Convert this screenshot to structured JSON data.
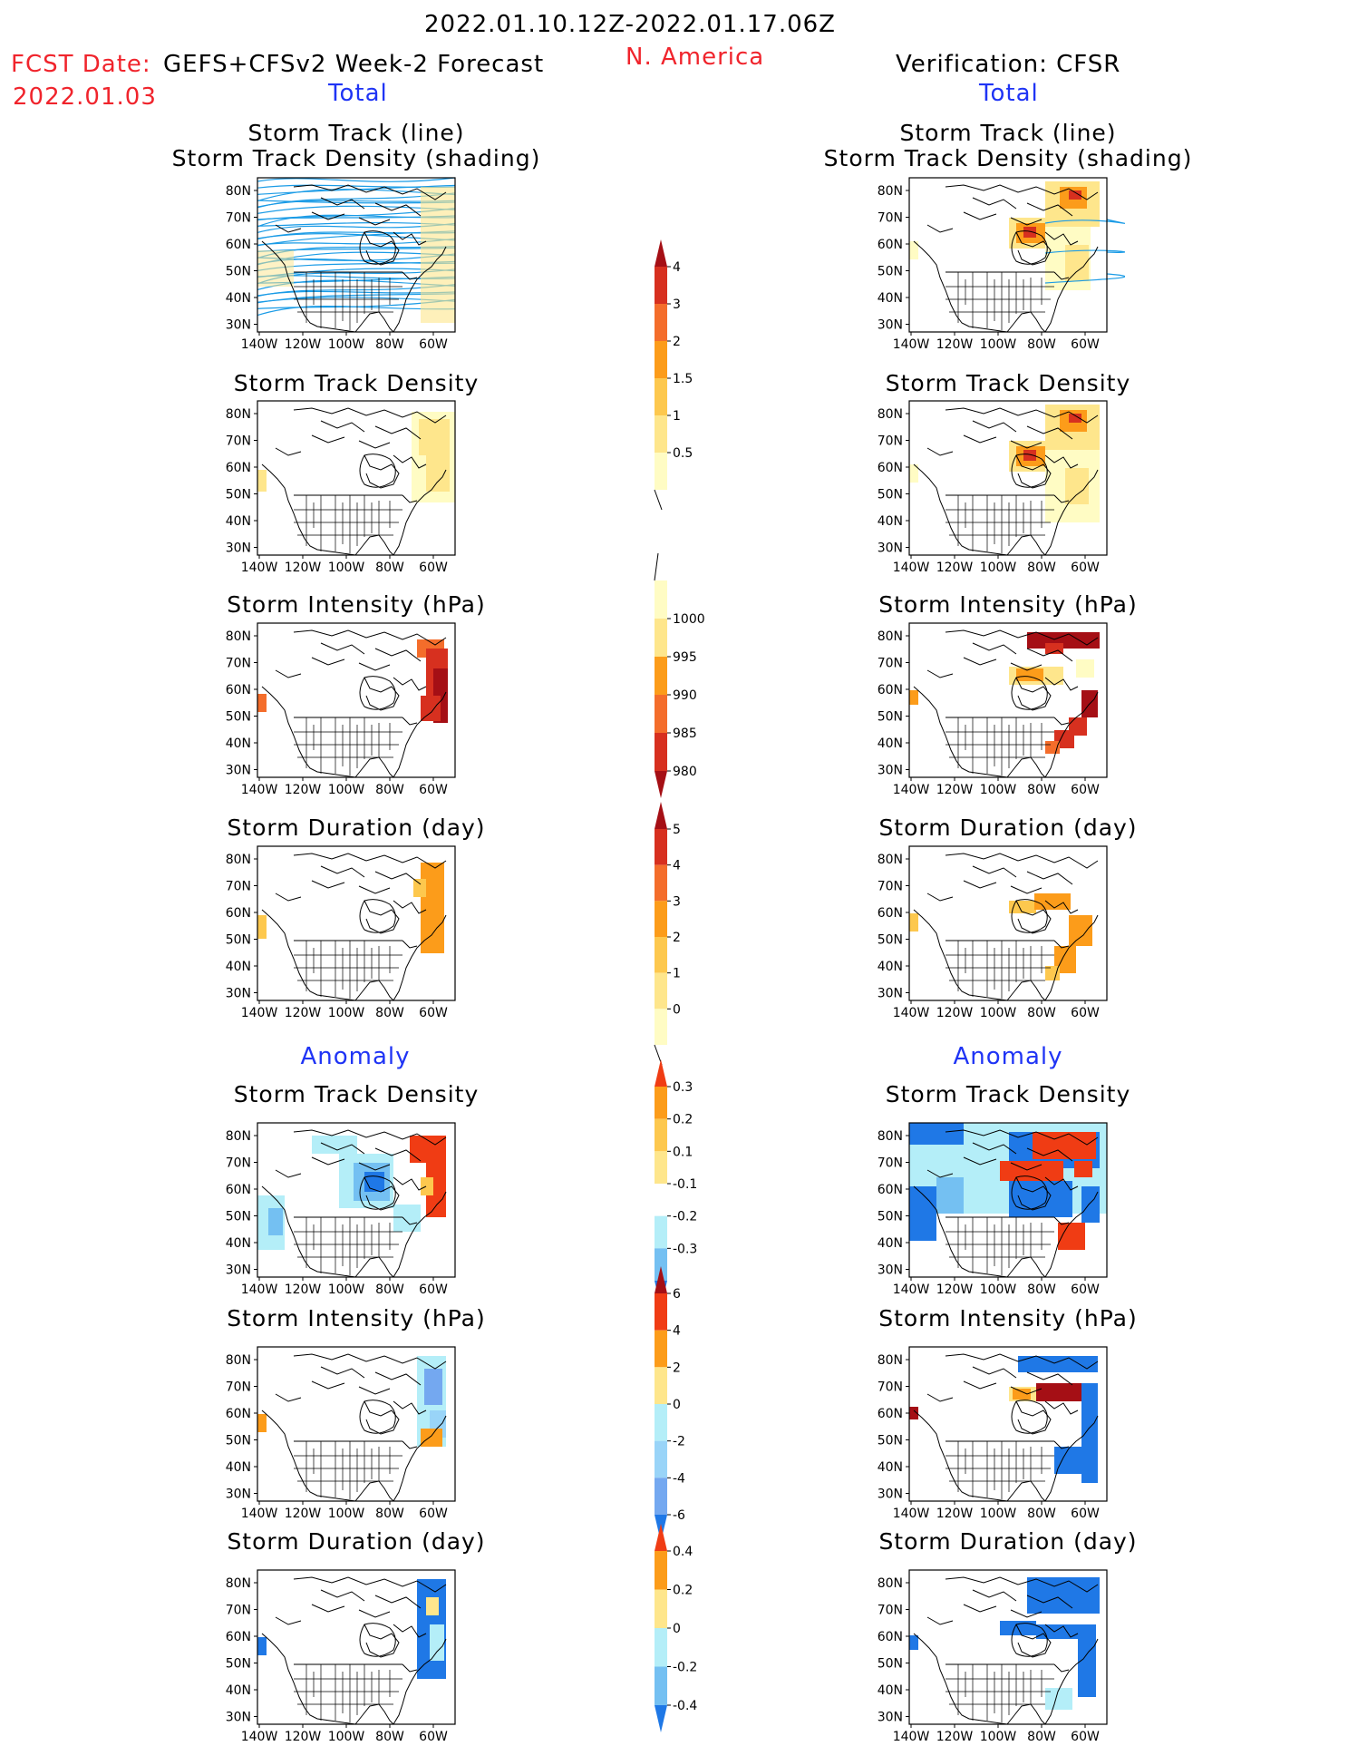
{
  "header": {
    "date_range": "2022.01.10.12Z-2022.01.17.06Z",
    "fcst_label": "FCST Date:",
    "fcst_desc": "GEFS+CFSv2 Week-2 Forecast",
    "fcst_date": "2022.01.03",
    "region": "N. America",
    "verification": "Verification: CFSR"
  },
  "sections": {
    "total_left": "Total",
    "total_right": "Total",
    "anomaly_left": "Anomaly",
    "anomaly_right": "Anomaly"
  },
  "panels": [
    {
      "title1": "Storm Track (line)",
      "title2": "Storm Track Density (shading)"
    },
    {
      "title1": "Storm Track Density"
    },
    {
      "title1": "Storm Intensity (hPa)"
    },
    {
      "title1": "Storm Duration (day)"
    },
    {
      "title1": "Storm Track Density"
    },
    {
      "title1": "Storm Intensity (hPa)"
    },
    {
      "title1": "Storm Duration (day)"
    }
  ],
  "axes": {
    "lat_labels": [
      "80N",
      "70N",
      "60N",
      "50N",
      "40N",
      "30N"
    ],
    "lon_labels": [
      "140W",
      "120W",
      "100W",
      "80W",
      "60W"
    ]
  },
  "colorbars": [
    {
      "name": "density",
      "labels": [
        "4",
        "3",
        "2",
        "1.5",
        "1",
        "0.5"
      ],
      "colors": [
        "#a50f15",
        "#d7301f",
        "#f46d2b",
        "#fc9c1a",
        "#fdc84e",
        "#fee68c",
        "#fffcc4"
      ]
    },
    {
      "name": "intensity",
      "labels": [
        "1000",
        "995",
        "990",
        "985",
        "980"
      ],
      "colors": [
        "#fffcc4",
        "#fee68c",
        "#fc9c1a",
        "#f46d2b",
        "#d7301f",
        "#a50f15"
      ]
    },
    {
      "name": "duration",
      "labels": [
        "5",
        "4",
        "3",
        "2",
        "1",
        "0"
      ],
      "colors": [
        "#a50f15",
        "#d7301f",
        "#f46d2b",
        "#fc9c1a",
        "#fdc84e",
        "#fee68c",
        "#fffcc4"
      ]
    },
    {
      "name": "density_anom",
      "labels": [
        "0.3",
        "0.2",
        "0.1",
        "-0.1",
        "-0.2",
        "-0.3"
      ],
      "colors": [
        "#f03c14",
        "#fc9c1a",
        "#fdc84e",
        "#fee68c",
        "#ffffff",
        "#b4eef8",
        "#74c0f2",
        "#1f78e6"
      ]
    },
    {
      "name": "intensity_anom",
      "labels": [
        "6",
        "4",
        "2",
        "0",
        "-2",
        "-4",
        "-6"
      ],
      "colors": [
        "#a50f15",
        "#f03c14",
        "#fc9c1a",
        "#fee68c",
        "#b4eef8",
        "#99d4f8",
        "#74a8f0",
        "#1f78e6"
      ]
    },
    {
      "name": "duration_anom",
      "labels": [
        "0.4",
        "0.2",
        "0",
        "-0.2",
        "-0.4"
      ],
      "colors": [
        "#f03c14",
        "#fc9c1a",
        "#fee68c",
        "#b4eef8",
        "#74c0f2",
        "#1f78e6"
      ]
    }
  ],
  "colors": {
    "title_red": "#f0242c",
    "section_blue": "#1f34f5",
    "track_line": "#1a9be6"
  }
}
